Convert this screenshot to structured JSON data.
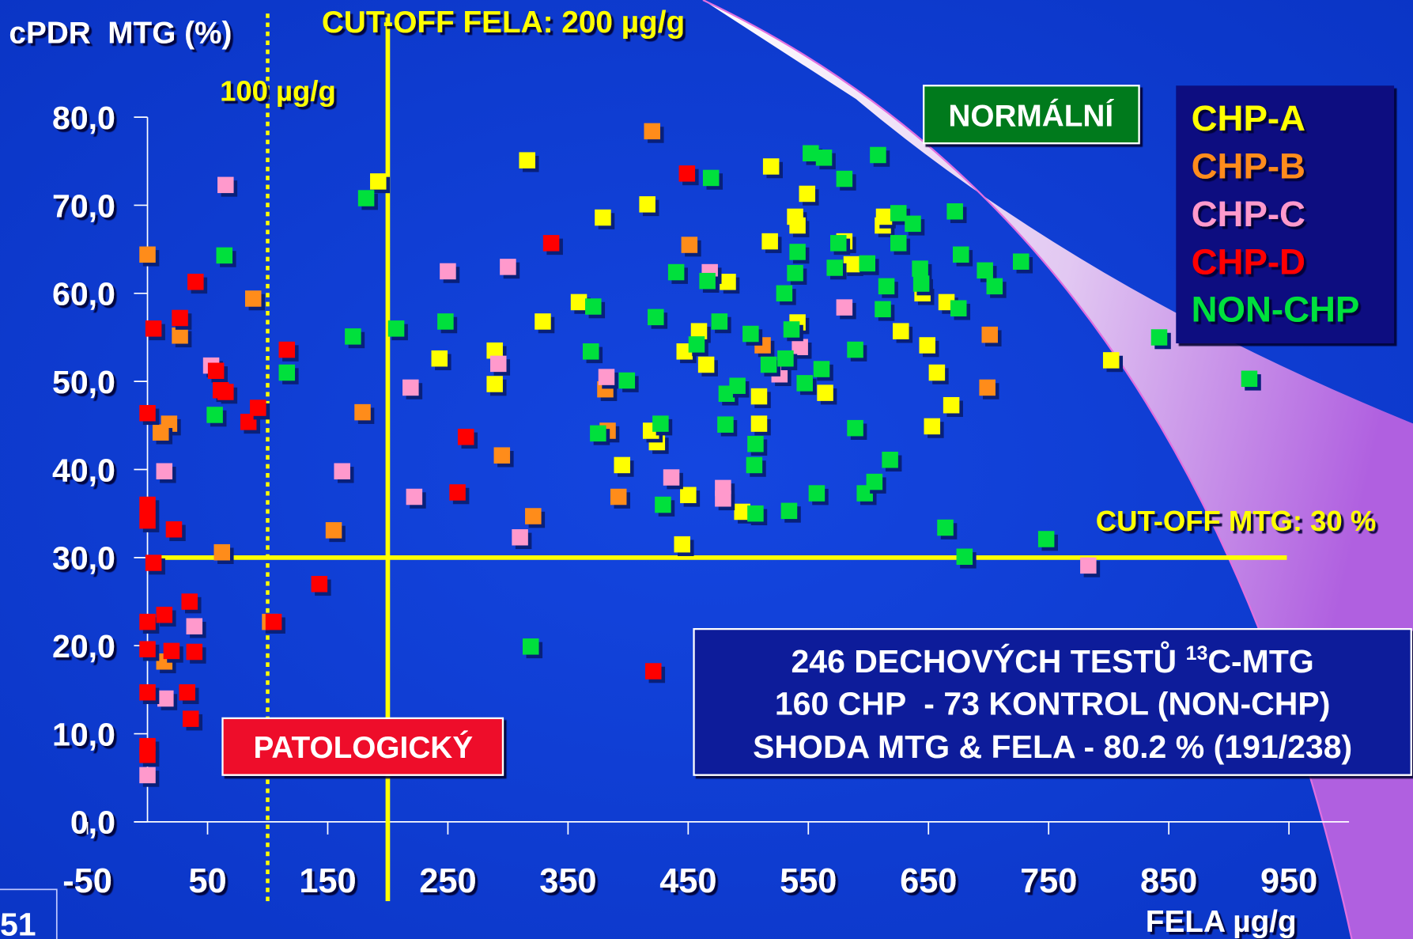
{
  "chart_data": {
    "type": "scatter",
    "ylabel": "cPDR  MTG (%)",
    "xlabel": "FELA µg/g",
    "xlim": [
      -50,
      1000
    ],
    "xticks": [
      -50,
      50,
      150,
      250,
      350,
      450,
      550,
      650,
      750,
      850,
      950
    ],
    "ylim": [
      0,
      80
    ],
    "yticks": [
      {
        "value": 0,
        "label": "0,0"
      },
      {
        "value": 10,
        "label": "10,0"
      },
      {
        "value": 20,
        "label": "20,0"
      },
      {
        "value": 30,
        "label": "30,0"
      },
      {
        "value": 40,
        "label": "40,0"
      },
      {
        "value": 50,
        "label": "50,0"
      },
      {
        "value": 60,
        "label": "60,0"
      },
      {
        "value": 70,
        "label": "70,0"
      },
      {
        "value": 80,
        "label": "80,0"
      }
    ],
    "legend": "top-right",
    "reference_lines": [
      {
        "axis": "x",
        "value": 100,
        "label": "100 µg/g",
        "style": "dotted",
        "color": "#ffff00"
      },
      {
        "axis": "x",
        "value": 200,
        "label": "CUT-OFF FELA: 200 µg/g",
        "style": "solid",
        "color": "#ffff00"
      },
      {
        "axis": "y",
        "value": 30,
        "label": "CUT-OFF MTG: 30 %",
        "style": "solid",
        "color": "#ffff00"
      }
    ],
    "series": [
      {
        "name": "CHP-A",
        "color": "#ffff00",
        "x": [
          192,
          316,
          379,
          416,
          359,
          329,
          243,
          289,
          289,
          395,
          424,
          419,
          450,
          445,
          483,
          465,
          459,
          447,
          495,
          509,
          509,
          519,
          518,
          539,
          541,
          549,
          541,
          564,
          580,
          586,
          612,
          613,
          627,
          645,
          649,
          657,
          669,
          653,
          665,
          802
        ],
        "values": [
          72.7,
          75.1,
          68.6,
          70.1,
          59,
          56.8,
          52.6,
          53.5,
          49.7,
          40.5,
          43.1,
          44.4,
          37.1,
          31.5,
          61.3,
          51.9,
          55.7,
          53.4,
          35.2,
          48.3,
          45.2,
          74.4,
          65.9,
          68.7,
          67.7,
          71.3,
          56.7,
          48.7,
          65.9,
          63.3,
          67.7,
          68.7,
          55.7,
          60,
          54.1,
          51,
          47.3,
          44.9,
          59,
          52.4
        ]
      },
      {
        "name": "CHP-B",
        "color": "#ff8c1a",
        "x": [
          0,
          27,
          88,
          18,
          11,
          62,
          179,
          155,
          295,
          321,
          102,
          14,
          420,
          451,
          381,
          383,
          392,
          512,
          701,
          699
        ],
        "values": [
          64.4,
          55.2,
          59.4,
          45.2,
          44.2,
          30.6,
          46.5,
          33.1,
          41.6,
          34.7,
          22.7,
          18.2,
          78.4,
          65.5,
          49.1,
          44.4,
          36.9,
          54.1,
          55.3,
          49.3
        ]
      },
      {
        "name": "CHP-C",
        "color": "#ff99cc",
        "x": [
          65,
          53,
          14,
          162,
          219,
          222,
          250,
          292,
          300,
          310,
          39,
          15,
          0,
          382,
          436,
          479,
          479,
          468,
          526,
          543,
          580,
          783
        ],
        "values": [
          72.3,
          51.8,
          39.8,
          39.8,
          49.3,
          36.9,
          62.5,
          52,
          63,
          32.3,
          22.2,
          14,
          5.3,
          50.5,
          39.1,
          37.9,
          36.7,
          62.4,
          50.8,
          53.9,
          58.4,
          29.1
        ]
      },
      {
        "name": "CHP-D",
        "color": "#ff0000",
        "x": [
          0,
          5,
          27,
          40,
          57,
          61,
          65,
          84,
          92,
          116,
          0,
          0,
          22,
          5,
          143,
          0,
          14,
          35,
          20,
          39,
          0,
          0,
          33,
          36,
          0,
          0,
          105,
          265,
          258,
          336,
          449,
          421
        ],
        "values": [
          46.4,
          56,
          57.2,
          61.3,
          51.2,
          49,
          48.8,
          45.4,
          47,
          53.6,
          36,
          34.2,
          33.2,
          29.4,
          27,
          22.7,
          23.5,
          25,
          19.4,
          19.3,
          19.6,
          14.7,
          14.7,
          11.7,
          8.6,
          7.6,
          22.7,
          43.7,
          37.4,
          65.7,
          73.6,
          17.1
        ]
      },
      {
        "name": "NON-CHP",
        "color": "#00e03c",
        "x": [
          182,
          207,
          171,
          116,
          56,
          64,
          248,
          319,
          371,
          369,
          399,
          375,
          427,
          429,
          423,
          440,
          457,
          466,
          469,
          476,
          482,
          481,
          491,
          502,
          506,
          505,
          506,
          517,
          530,
          531,
          536,
          534,
          539,
          541,
          547,
          552,
          557,
          561,
          563,
          580,
          575,
          572,
          589,
          589,
          599,
          597,
          605,
          608,
          615,
          612,
          618,
          625,
          625,
          637,
          643,
          644,
          672,
          677,
          675,
          664,
          680,
          697,
          705,
          727,
          748,
          842,
          917
        ],
        "values": [
          70.8,
          56,
          55.1,
          51,
          46.2,
          64.3,
          56.8,
          19.9,
          58.5,
          53.4,
          50.1,
          44.1,
          45.2,
          36,
          57.3,
          62.4,
          54.2,
          61.4,
          73.1,
          56.8,
          48.6,
          45.1,
          49.5,
          55.4,
          42.9,
          40.5,
          35,
          51.9,
          60,
          52.6,
          55.9,
          35.3,
          62.3,
          64.7,
          49.8,
          75.9,
          37.3,
          51.4,
          75.4,
          73,
          65.7,
          62.9,
          53.6,
          44.7,
          63.4,
          37.3,
          38.6,
          75.7,
          60.8,
          58.2,
          41.1,
          65.7,
          69.1,
          67.9,
          62.8,
          61.1,
          69.3,
          64.4,
          58.3,
          33.4,
          30.1,
          62.6,
          60.8,
          63.6,
          32.1,
          55,
          50.3
        ]
      }
    ],
    "region_normal": "NORMÁLNÍ",
    "region_pathologic": "PATOLOGICKÝ",
    "note": {
      "line1_before": "246 DECHOVÝCH TESTŮ ",
      "line1_sup": "13",
      "line1_after": "C-MTG",
      "line2": "160 CHP  - 73 KONTROL (NON-CHP)",
      "line3": "SHODA MTG & FELA - 80.2 % (191/238)"
    },
    "slide_number": "51"
  }
}
